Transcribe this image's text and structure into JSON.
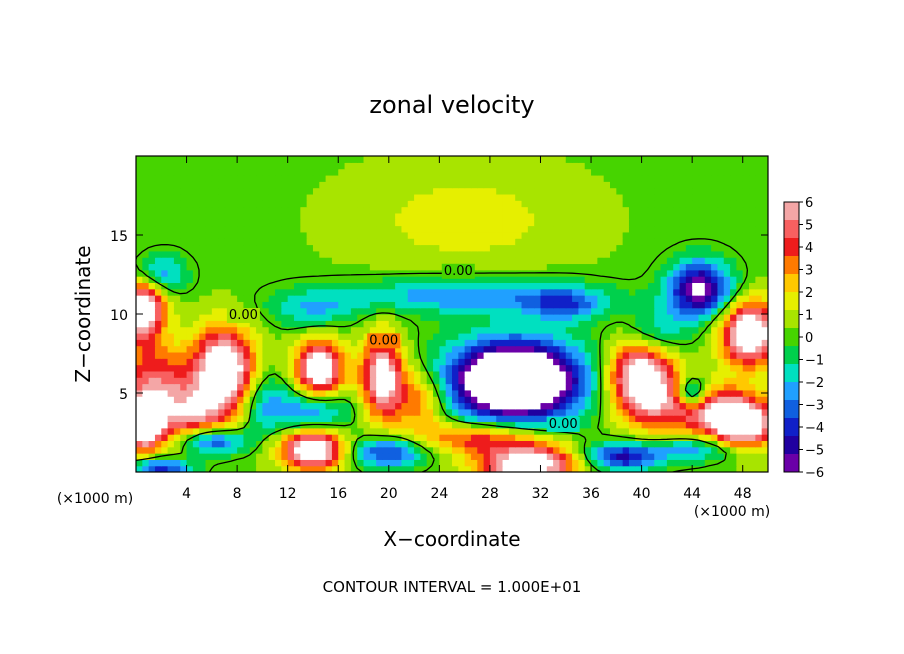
{
  "chart_data": {
    "type": "heatmap",
    "title": "zonal velocity",
    "xlabel": "X−coordinate",
    "ylabel": "Z−coordinate",
    "x_unit": "(×1000 m)",
    "y_unit": "(×1000 m)",
    "xlim": [
      0,
      50
    ],
    "ylim": [
      0,
      20
    ],
    "x_ticks": [
      {
        "value": 4,
        "label": "4"
      },
      {
        "value": 8,
        "label": "8"
      },
      {
        "value": 12,
        "label": "12"
      },
      {
        "value": 16,
        "label": "16"
      },
      {
        "value": 20,
        "label": "20"
      },
      {
        "value": 24,
        "label": "24"
      },
      {
        "value": 28,
        "label": "28"
      },
      {
        "value": 32,
        "label": "32"
      },
      {
        "value": 36,
        "label": "36"
      },
      {
        "value": 40,
        "label": "40"
      },
      {
        "value": 44,
        "label": "44"
      },
      {
        "value": 48,
        "label": "48"
      }
    ],
    "y_ticks": [
      {
        "value": 5,
        "label": "5"
      },
      {
        "value": 10,
        "label": "10"
      },
      {
        "value": 15,
        "label": "15"
      }
    ],
    "colorbar": {
      "range": [
        -6,
        6
      ],
      "ticks": [
        "6",
        "5",
        "4",
        "3",
        "2",
        "1",
        "0",
        "−1",
        "−2",
        "−3",
        "−4",
        "−5",
        "−6"
      ],
      "colors": [
        "#f4a6a6",
        "#f86060",
        "#ee1c1c",
        "#ff7a00",
        "#ffc800",
        "#e6ef00",
        "#a8e400",
        "#46d400",
        "#00d04c",
        "#00e0c0",
        "#20a0ff",
        "#1060e0",
        "#1020c8",
        "#2000a0",
        "#6a00a8"
      ]
    },
    "contour_labels": [
      {
        "x": 25.5,
        "z": 12.8,
        "text": "0.00"
      },
      {
        "x": 8.5,
        "z": 10.0,
        "text": "0.00"
      },
      {
        "x": 19.6,
        "z": 8.4,
        "text": "0.00"
      },
      {
        "x": 33.8,
        "z": 3.1,
        "text": "0.00"
      }
    ],
    "features": [
      {
        "x": 26,
        "z": 16.0,
        "v": 1.4,
        "sx": 8,
        "sz": 3
      },
      {
        "x": 26,
        "z": 11.2,
        "v": -3.0,
        "sx": 10,
        "sz": 1.1
      },
      {
        "x": 14,
        "z": 10.3,
        "v": -2.2,
        "sx": 3.5,
        "sz": 1.2
      },
      {
        "x": 34,
        "z": 10.6,
        "v": -3.0,
        "sx": 3,
        "sz": 1.0
      },
      {
        "x": 44.6,
        "z": 11.6,
        "v": -6.5,
        "sx": 2.5,
        "sz": 1.8
      },
      {
        "x": 41,
        "z": 8.8,
        "v": -3.0,
        "sx": 2.5,
        "sz": 1.6
      },
      {
        "x": 48.5,
        "z": 8.8,
        "v": 8.0,
        "sx": 2.2,
        "sz": 2.0
      },
      {
        "x": 0.5,
        "z": 10.5,
        "v": 7.5,
        "sx": 1.8,
        "sz": 2.2
      },
      {
        "x": 1.5,
        "z": 12.5,
        "v": -4.0,
        "sx": 2.2,
        "sz": 1.3
      },
      {
        "x": 1.5,
        "z": 5.5,
        "v": 4.5,
        "sx": 3,
        "sz": 2.5
      },
      {
        "x": 7,
        "z": 6.5,
        "v": 8.0,
        "sx": 2.4,
        "sz": 2.6
      },
      {
        "x": 0.5,
        "z": 3.0,
        "v": 7.5,
        "sx": 1.6,
        "sz": 1.6
      },
      {
        "x": 4.5,
        "z": 3.5,
        "v": 4.0,
        "sx": 3,
        "sz": 1.8
      },
      {
        "x": 14.5,
        "z": 6.5,
        "v": 7.5,
        "sx": 1.9,
        "sz": 1.8
      },
      {
        "x": 14,
        "z": 3.8,
        "v": -3.5,
        "sx": 3,
        "sz": 1.5
      },
      {
        "x": 19.5,
        "z": 6.0,
        "v": 7.0,
        "sx": 1.7,
        "sz": 2.6
      },
      {
        "x": 22.5,
        "z": 4.5,
        "v": 3.5,
        "sx": 2.0,
        "sz": 2.0
      },
      {
        "x": 10,
        "z": 4.5,
        "v": -2.5,
        "sx": 2.0,
        "sz": 2.0
      },
      {
        "x": 30,
        "z": 5.8,
        "v": -9.0,
        "sx": 4.2,
        "sz": 2.0
      },
      {
        "x": 30,
        "z": 5.8,
        "v": -4.0,
        "sx": 6.5,
        "sz": 3.2
      },
      {
        "x": 40,
        "z": 6.0,
        "v": 8.0,
        "sx": 2.6,
        "sz": 2.6
      },
      {
        "x": 45,
        "z": 4.0,
        "v": 5.0,
        "sx": 4,
        "sz": 1.6
      },
      {
        "x": 44,
        "z": 5.0,
        "v": -5.0,
        "sx": 1.2,
        "sz": 1.0
      },
      {
        "x": 48,
        "z": 3.0,
        "v": 7.0,
        "sx": 2.5,
        "sz": 1.5
      },
      {
        "x": 6,
        "z": 2.0,
        "v": -5.0,
        "sx": 2.5,
        "sz": 0.9
      },
      {
        "x": 14,
        "z": 1.5,
        "v": 8.0,
        "sx": 2.5,
        "sz": 1.3
      },
      {
        "x": 20,
        "z": 1.3,
        "v": -4.5,
        "sx": 3,
        "sz": 1.0
      },
      {
        "x": 27,
        "z": 2.2,
        "v": 4.0,
        "sx": 5,
        "sz": 1.0
      },
      {
        "x": 31,
        "z": 0.5,
        "v": 7.5,
        "sx": 4,
        "sz": 1.3
      },
      {
        "x": 38.5,
        "z": 1.0,
        "v": -5.0,
        "sx": 3,
        "sz": 0.9
      },
      {
        "x": 44.5,
        "z": 1.5,
        "v": -3.0,
        "sx": 3.5,
        "sz": 0.8
      },
      {
        "x": 2,
        "z": 0.3,
        "v": -4.5,
        "sx": 2.5,
        "sz": 0.6
      }
    ]
  },
  "footer": {
    "contour_interval": "CONTOUR INTERVAL = 1.000E+01"
  }
}
